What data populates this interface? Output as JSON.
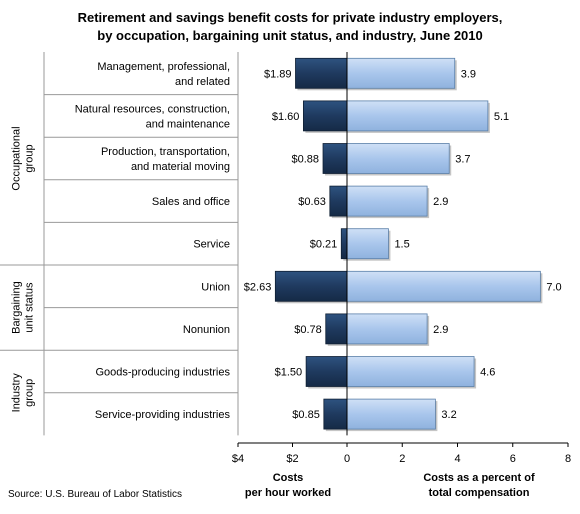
{
  "chart_data": {
    "type": "bar",
    "orientation": "horizontal",
    "title": "Retirement and savings benefit costs for private industry employers, by occupation, bargaining unit status, and industry, June 2010",
    "title_lines": [
      "Retirement and savings benefit costs for private industry employers,",
      "by occupation, bargaining unit status, and industry, June 2010"
    ],
    "categories": [
      [
        "Management, professional,",
        "and related"
      ],
      [
        "Natural resources, construction,",
        "and maintenance"
      ],
      [
        "Production, transportation,",
        "and material moving"
      ],
      [
        "Sales and office"
      ],
      [
        "Service"
      ],
      [
        "Union"
      ],
      [
        "Nonunion"
      ],
      [
        "Goods-producing industries"
      ],
      [
        "Service-providing industries"
      ]
    ],
    "groups": [
      {
        "lines": [
          "Occupational",
          "group"
        ],
        "start": 0,
        "end": 4
      },
      {
        "lines": [
          "Bargaining",
          "unit status"
        ],
        "start": 5,
        "end": 6
      },
      {
        "lines": [
          "Industry",
          "group"
        ],
        "start": 7,
        "end": 8
      }
    ],
    "series": [
      {
        "key": "cost",
        "color": "#1f3a5f",
        "values": [
          1.89,
          1.6,
          0.88,
          0.63,
          0.21,
          2.63,
          0.78,
          1.5,
          0.85
        ],
        "labels": [
          "$1.89",
          "$1.60",
          "$0.88",
          "$0.63",
          "$0.21",
          "$2.63",
          "$0.78",
          "$1.50",
          "$0.85"
        ]
      },
      {
        "key": "percent",
        "color": "#a9c6ec",
        "values": [
          3.9,
          5.1,
          3.7,
          2.9,
          1.5,
          7.0,
          2.9,
          4.6,
          3.2
        ],
        "labels": [
          "3.9",
          "5.1",
          "3.7",
          "2.9",
          "1.5",
          "7.0",
          "2.9",
          "4.6",
          "3.2"
        ]
      }
    ],
    "left_axis": {
      "range": [
        0,
        4
      ],
      "ticks": [
        4,
        2,
        0
      ],
      "tick_labels": [
        "$4",
        "$2",
        "0"
      ],
      "title_lines": [
        "Costs",
        "per hour worked"
      ]
    },
    "right_axis": {
      "range": [
        0,
        8
      ],
      "ticks": [
        2,
        4,
        6,
        8
      ],
      "tick_labels": [
        "2",
        "4",
        "6",
        "8"
      ],
      "title_lines": [
        "Costs as a percent of",
        "total compensation"
      ]
    },
    "grid": false,
    "legend": "none",
    "source": "Source: U.S. Bureau of Labor Statistics"
  }
}
